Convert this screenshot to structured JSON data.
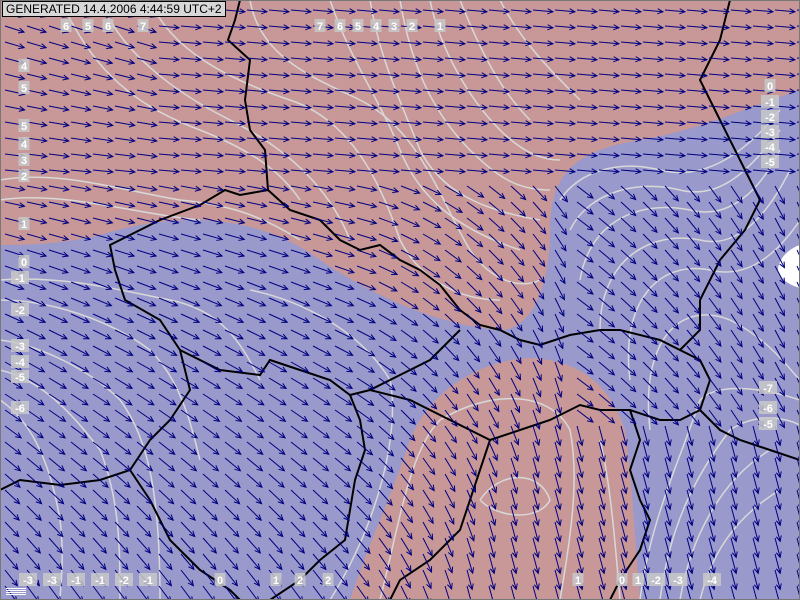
{
  "header": {
    "generated_label": "GENERATED 14.4.2006 4:44:59 UTC+2"
  },
  "map": {
    "warm_color": "#c89898",
    "cold_color": "#9999cc",
    "contour_color": "#d8d8d8",
    "arrow_color": "#000080",
    "border_color": "#000000",
    "legend_icon": "layers-icon"
  },
  "contour_labels": {
    "top": [
      "6",
      "5",
      "6",
      "7",
      "7",
      "6",
      "5",
      "4",
      "3",
      "2",
      "1"
    ],
    "left": [
      "4",
      "5",
      "5",
      "4",
      "3",
      "2",
      "1",
      "0",
      "-1",
      "-2",
      "-3",
      "-4",
      "-5",
      "-6"
    ],
    "right": [
      "0",
      "-1",
      "-2",
      "-3",
      "-4",
      "-5",
      "-7",
      "-6",
      "-5"
    ],
    "bottom": [
      "-3",
      "-3",
      "-1",
      "-1",
      "-2",
      "-1",
      "0",
      "1",
      "2",
      "2",
      "1",
      "0",
      "1",
      "-2",
      "-3",
      "-4"
    ]
  }
}
